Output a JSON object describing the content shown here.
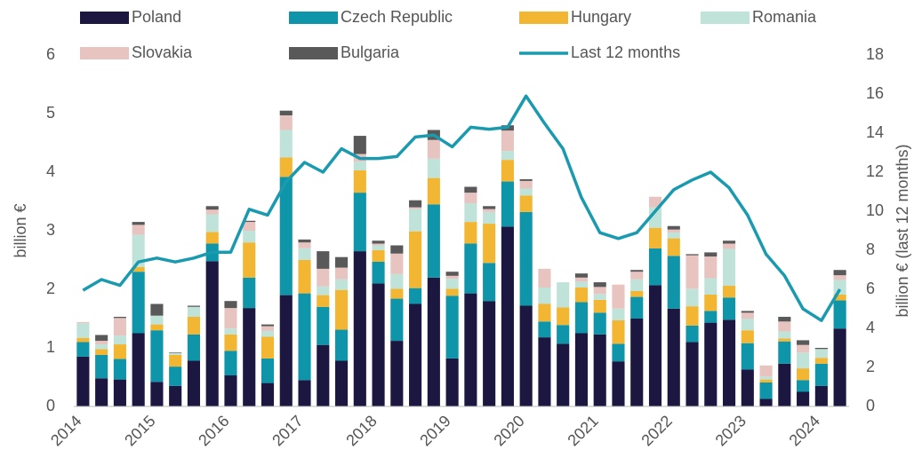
{
  "chart_data": {
    "type": "bar",
    "stacked": true,
    "categories": [
      "2014",
      null,
      null,
      null,
      "2015",
      null,
      null,
      null,
      "2016",
      null,
      null,
      null,
      "2017",
      null,
      null,
      null,
      "2018",
      null,
      null,
      null,
      "2019",
      null,
      null,
      null,
      "2020",
      null,
      null,
      null,
      "2021",
      null,
      null,
      null,
      "2022",
      null,
      null,
      null,
      "2023",
      null,
      null,
      null,
      "2024",
      null
    ],
    "series": [
      {
        "name": "Poland",
        "color": "#1c1741",
        "values": [
          0.85,
          0.48,
          0.46,
          1.25,
          0.42,
          0.35,
          0.78,
          2.48,
          0.53,
          1.68,
          0.4,
          1.9,
          0.45,
          1.05,
          0.78,
          2.65,
          2.1,
          1.12,
          1.75,
          2.2,
          0.82,
          1.93,
          1.8,
          3.07,
          1.72,
          1.18,
          1.07,
          1.25,
          1.23,
          0.77,
          1.5,
          2.07,
          1.67,
          1.1,
          1.43,
          1.48,
          0.63,
          0.13,
          0.73,
          0.25,
          0.35,
          1.33
        ]
      },
      {
        "name": "Czech Republic",
        "color": "#0e95a9",
        "values": [
          0.25,
          0.4,
          0.35,
          1.05,
          0.88,
          0.33,
          0.45,
          0.3,
          0.42,
          0.52,
          0.42,
          2.02,
          1.48,
          0.65,
          0.53,
          1.0,
          0.37,
          0.72,
          0.27,
          1.25,
          1.07,
          0.85,
          0.65,
          0.77,
          1.6,
          0.27,
          0.32,
          0.53,
          0.37,
          0.3,
          0.37,
          0.63,
          0.9,
          0.28,
          0.2,
          0.38,
          0.45,
          0.28,
          0.38,
          0.2,
          0.38,
          0.48
        ]
      },
      {
        "name": "Hungary",
        "color": "#f2b632",
        "values": [
          0.07,
          0.1,
          0.25,
          0.08,
          0.1,
          0.2,
          0.3,
          0.2,
          0.28,
          0.6,
          0.37,
          0.33,
          0.57,
          0.2,
          0.68,
          0.38,
          0.2,
          0.17,
          0.97,
          0.45,
          0.12,
          0.37,
          0.67,
          0.37,
          0.28,
          0.3,
          0.3,
          0.25,
          0.22,
          0.4,
          0.1,
          0.35,
          0.3,
          0.33,
          0.28,
          0.2,
          0.22,
          0.05,
          0.05,
          0.2,
          0.1,
          0.1
        ]
      },
      {
        "name": "Romania",
        "color": "#bfe3d9",
        "values": [
          0.25,
          0.08,
          0.15,
          0.55,
          0.15,
          0.03,
          0.17,
          0.3,
          0.1,
          0.2,
          0.1,
          0.47,
          0.2,
          0.15,
          0.18,
          0.15,
          0.08,
          0.25,
          0.38,
          0.33,
          0.17,
          0.32,
          0.2,
          0.15,
          0.12,
          0.28,
          0.43,
          0.1,
          0.1,
          0.2,
          0.2,
          0.35,
          0.1,
          0.3,
          0.28,
          0.63,
          0.2,
          0.05,
          0.12,
          0.27,
          0.15,
          0.25
        ]
      },
      {
        "name": "Slovakia",
        "color": "#e8c4c1",
        "values": [
          0.02,
          0.06,
          0.3,
          0.17,
          0.0,
          0.0,
          0.0,
          0.08,
          0.35,
          0.15,
          0.08,
          0.25,
          0.1,
          0.3,
          0.2,
          0.13,
          0.03,
          0.35,
          0.03,
          0.32,
          0.05,
          0.18,
          0.05,
          0.35,
          0.13,
          0.32,
          0.0,
          0.07,
          0.12,
          0.41,
          0.13,
          0.18,
          0.05,
          0.57,
          0.37,
          0.09,
          0.1,
          0.19,
          0.17,
          0.13,
          0.0,
          0.08
        ]
      },
      {
        "name": "Bulgaria",
        "color": "#595959",
        "values": [
          0.0,
          0.1,
          0.02,
          0.05,
          0.2,
          0.01,
          0.02,
          0.06,
          0.12,
          0.02,
          0.03,
          0.08,
          0.05,
          0.3,
          0.18,
          0.31,
          0.05,
          0.14,
          0.12,
          0.17,
          0.07,
          0.1,
          0.05,
          0.09,
          0.03,
          0.0,
          0.0,
          0.07,
          0.08,
          0.0,
          0.03,
          0.0,
          0.06,
          0.02,
          0.07,
          0.05,
          0.03,
          0.0,
          0.08,
          0.08,
          0.02,
          0.09
        ]
      },
      {
        "name": "Last 12 months",
        "color": "#1a9aaf",
        "type": "line",
        "axis": "y2",
        "values": [
          5.95,
          6.5,
          6.2,
          7.4,
          7.6,
          7.4,
          7.6,
          7.9,
          7.9,
          10.1,
          9.8,
          11.5,
          12.5,
          12.0,
          13.2,
          12.7,
          12.7,
          12.8,
          13.8,
          13.9,
          13.3,
          14.3,
          14.2,
          14.3,
          15.9,
          14.5,
          13.2,
          10.7,
          8.9,
          8.6,
          8.9,
          10.0,
          11.1,
          11.6,
          12.0,
          11.2,
          9.8,
          7.8,
          6.7,
          5.0,
          4.4,
          6.0
        ]
      }
    ],
    "ylabel": "billion €",
    "y2label": "billion € (last 12 months)",
    "ylim": [
      0,
      6
    ],
    "yticks": [
      0,
      1,
      2,
      3,
      4,
      5,
      6
    ],
    "y2lim": [
      0,
      18
    ],
    "y2ticks": [
      0,
      2,
      4,
      6,
      8,
      10,
      12,
      14,
      16,
      18
    ],
    "grid": false,
    "legend": "top"
  }
}
